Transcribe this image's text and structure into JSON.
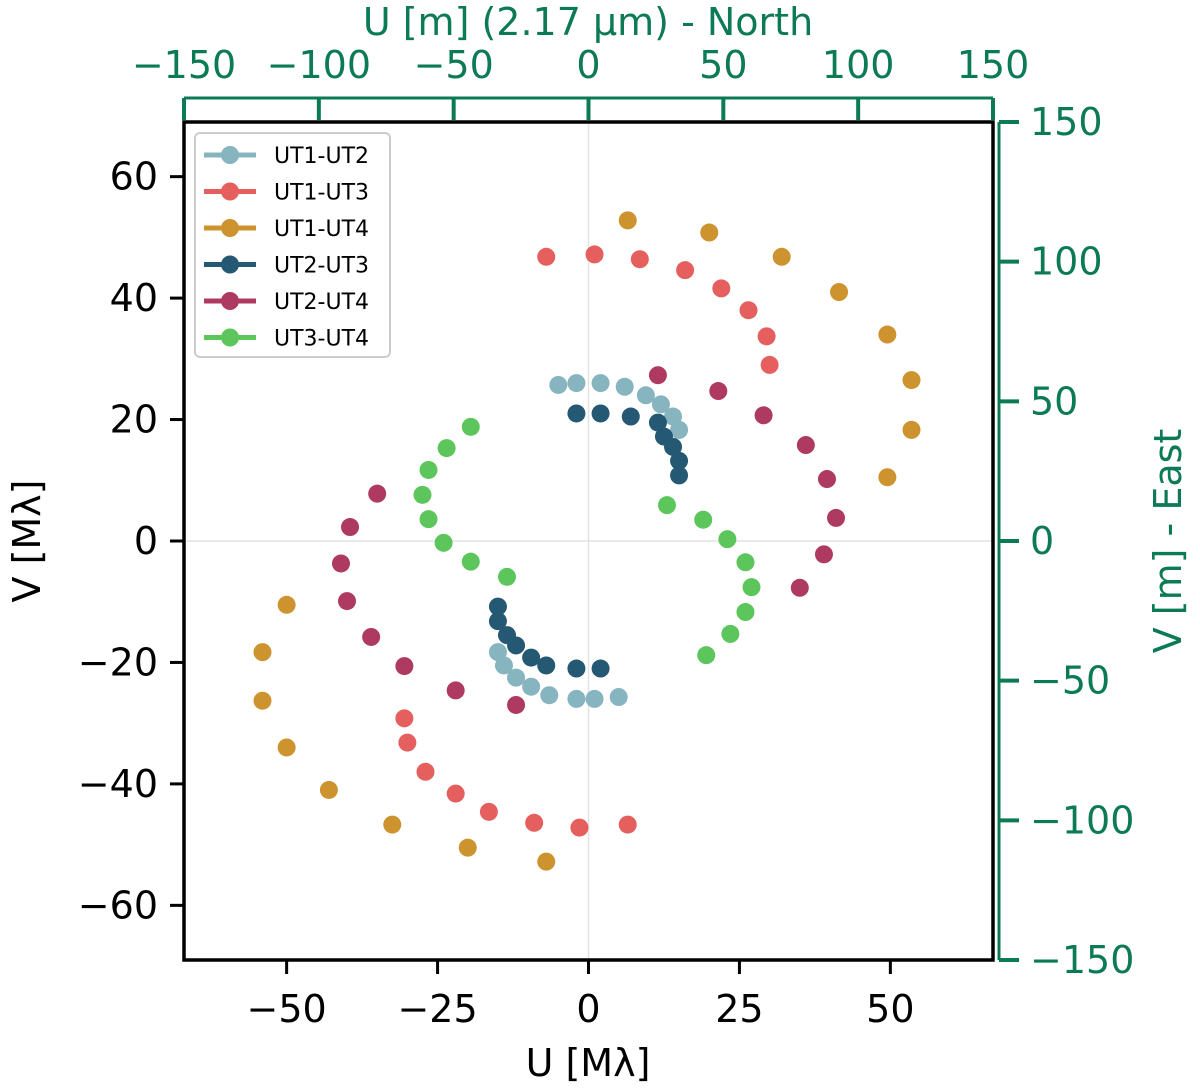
{
  "chart_data": {
    "type": "scatter",
    "xlabel": "U [Mλ]",
    "ylabel": "V [Mλ]",
    "top_label": "U [m] (2.17 µm) - North",
    "right_label": "V [m] - East",
    "xlim": [
      -67,
      67
    ],
    "ylim": [
      -69,
      69
    ],
    "x_ticks": [
      -50,
      -25,
      0,
      25,
      50
    ],
    "y_ticks": [
      -60,
      -40,
      -20,
      0,
      20,
      40,
      60
    ],
    "x_tick_labels": [
      "−50",
      "−25",
      "0",
      "25",
      "50"
    ],
    "y_tick_labels": [
      "−60",
      "−40",
      "−20",
      "0",
      "20",
      "40",
      "60"
    ],
    "top_axis": {
      "lim": [
        -150,
        150
      ],
      "ticks": [
        -150,
        -100,
        -50,
        0,
        50,
        100,
        150
      ],
      "tick_labels": [
        "−150",
        "−100",
        "−50",
        "0",
        "50",
        "100",
        "150"
      ]
    },
    "right_axis": {
      "lim": [
        -150,
        150
      ],
      "ticks": [
        -150,
        -100,
        -50,
        0,
        50,
        100,
        150
      ],
      "tick_labels": [
        "−150",
        "−100",
        "−50",
        "0",
        "50",
        "100",
        "150"
      ]
    },
    "grid": "zero-lines",
    "legend_position": "top-left",
    "secondary_axis_color": "#0b7a55",
    "series": [
      {
        "name": "UT1-UT2",
        "color": "#86b4bf",
        "points": [
          [
            -5,
            25.7
          ],
          [
            -2,
            26
          ],
          [
            2,
            26
          ],
          [
            6,
            25.4
          ],
          [
            9.5,
            24
          ],
          [
            12,
            22.5
          ],
          [
            14,
            20.5
          ],
          [
            15,
            18.3
          ],
          [
            5,
            -25.7
          ],
          [
            1,
            -26
          ],
          [
            -2,
            -26
          ],
          [
            -6.5,
            -25.4
          ],
          [
            -9.5,
            -24
          ],
          [
            -12,
            -22.5
          ],
          [
            -14,
            -20.5
          ],
          [
            -15,
            -18.3
          ]
        ]
      },
      {
        "name": "UT1-UT3",
        "color": "#e65f5f",
        "points": [
          [
            -7,
            46.8
          ],
          [
            1,
            47.2
          ],
          [
            8.5,
            46.4
          ],
          [
            16,
            44.6
          ],
          [
            22,
            41.6
          ],
          [
            26.5,
            38
          ],
          [
            29.5,
            33.7
          ],
          [
            30,
            29
          ],
          [
            6.5,
            -46.7
          ],
          [
            -1.5,
            -47.2
          ],
          [
            -9,
            -46.4
          ],
          [
            -16.5,
            -44.6
          ],
          [
            -22,
            -41.6
          ],
          [
            -27,
            -38
          ],
          [
            -30,
            -33.2
          ],
          [
            -30.5,
            -29.2
          ]
        ]
      },
      {
        "name": "UT1-UT4",
        "color": "#cd932f",
        "points": [
          [
            6.5,
            52.8
          ],
          [
            20,
            50.8
          ],
          [
            32,
            46.8
          ],
          [
            41.5,
            41
          ],
          [
            49.5,
            34
          ],
          [
            53.5,
            26.5
          ],
          [
            53.5,
            18.3
          ],
          [
            49.5,
            10.5
          ],
          [
            -7,
            -52.8
          ],
          [
            -20,
            -50.5
          ],
          [
            -32.5,
            -46.7
          ],
          [
            -43,
            -41
          ],
          [
            -50,
            -34
          ],
          [
            -54,
            -26.3
          ],
          [
            -54,
            -18.3
          ],
          [
            -50,
            -10.5
          ]
        ]
      },
      {
        "name": "UT2-UT3",
        "color": "#245873",
        "points": [
          [
            -2,
            21
          ],
          [
            2,
            21
          ],
          [
            7,
            20.5
          ],
          [
            11.5,
            19.5
          ],
          [
            12.5,
            17.2
          ],
          [
            14,
            15.5
          ],
          [
            15,
            13.2
          ],
          [
            15,
            10.8
          ],
          [
            2,
            -21
          ],
          [
            -2,
            -21
          ],
          [
            -7,
            -20.5
          ],
          [
            -9.5,
            -19.2
          ],
          [
            -12,
            -17.2
          ],
          [
            -13.5,
            -15.5
          ],
          [
            -15,
            -13.2
          ],
          [
            -15,
            -10.8
          ]
        ]
      },
      {
        "name": "UT2-UT4",
        "color": "#ae3a61",
        "points": [
          [
            11.5,
            27.3
          ],
          [
            21.5,
            24.7
          ],
          [
            29,
            20.7
          ],
          [
            36,
            15.8
          ],
          [
            39.5,
            10.2
          ],
          [
            41,
            3.8
          ],
          [
            39,
            -2.2
          ],
          [
            35,
            -7.7
          ],
          [
            -12,
            -27
          ],
          [
            -22,
            -24.6
          ],
          [
            -30.5,
            -20.6
          ],
          [
            -36,
            -15.8
          ],
          [
            -40,
            -9.9
          ],
          [
            -41,
            -3.7
          ],
          [
            -39.5,
            2.3
          ],
          [
            -35,
            7.8
          ]
        ]
      },
      {
        "name": "UT3-UT4",
        "color": "#5cc65c",
        "points": [
          [
            -19.5,
            18.8
          ],
          [
            -23.5,
            15.3
          ],
          [
            -26.5,
            11.7
          ],
          [
            -27.5,
            7.6
          ],
          [
            -26.5,
            3.6
          ],
          [
            -24,
            -0.3
          ],
          [
            -19.5,
            -3.4
          ],
          [
            -13.5,
            -5.9
          ],
          [
            13,
            5.9
          ],
          [
            19,
            3.5
          ],
          [
            23,
            0.3
          ],
          [
            26,
            -3.5
          ],
          [
            27,
            -7.6
          ],
          [
            26,
            -11.7
          ],
          [
            23.5,
            -15.3
          ],
          [
            19.5,
            -18.8
          ]
        ]
      }
    ]
  }
}
